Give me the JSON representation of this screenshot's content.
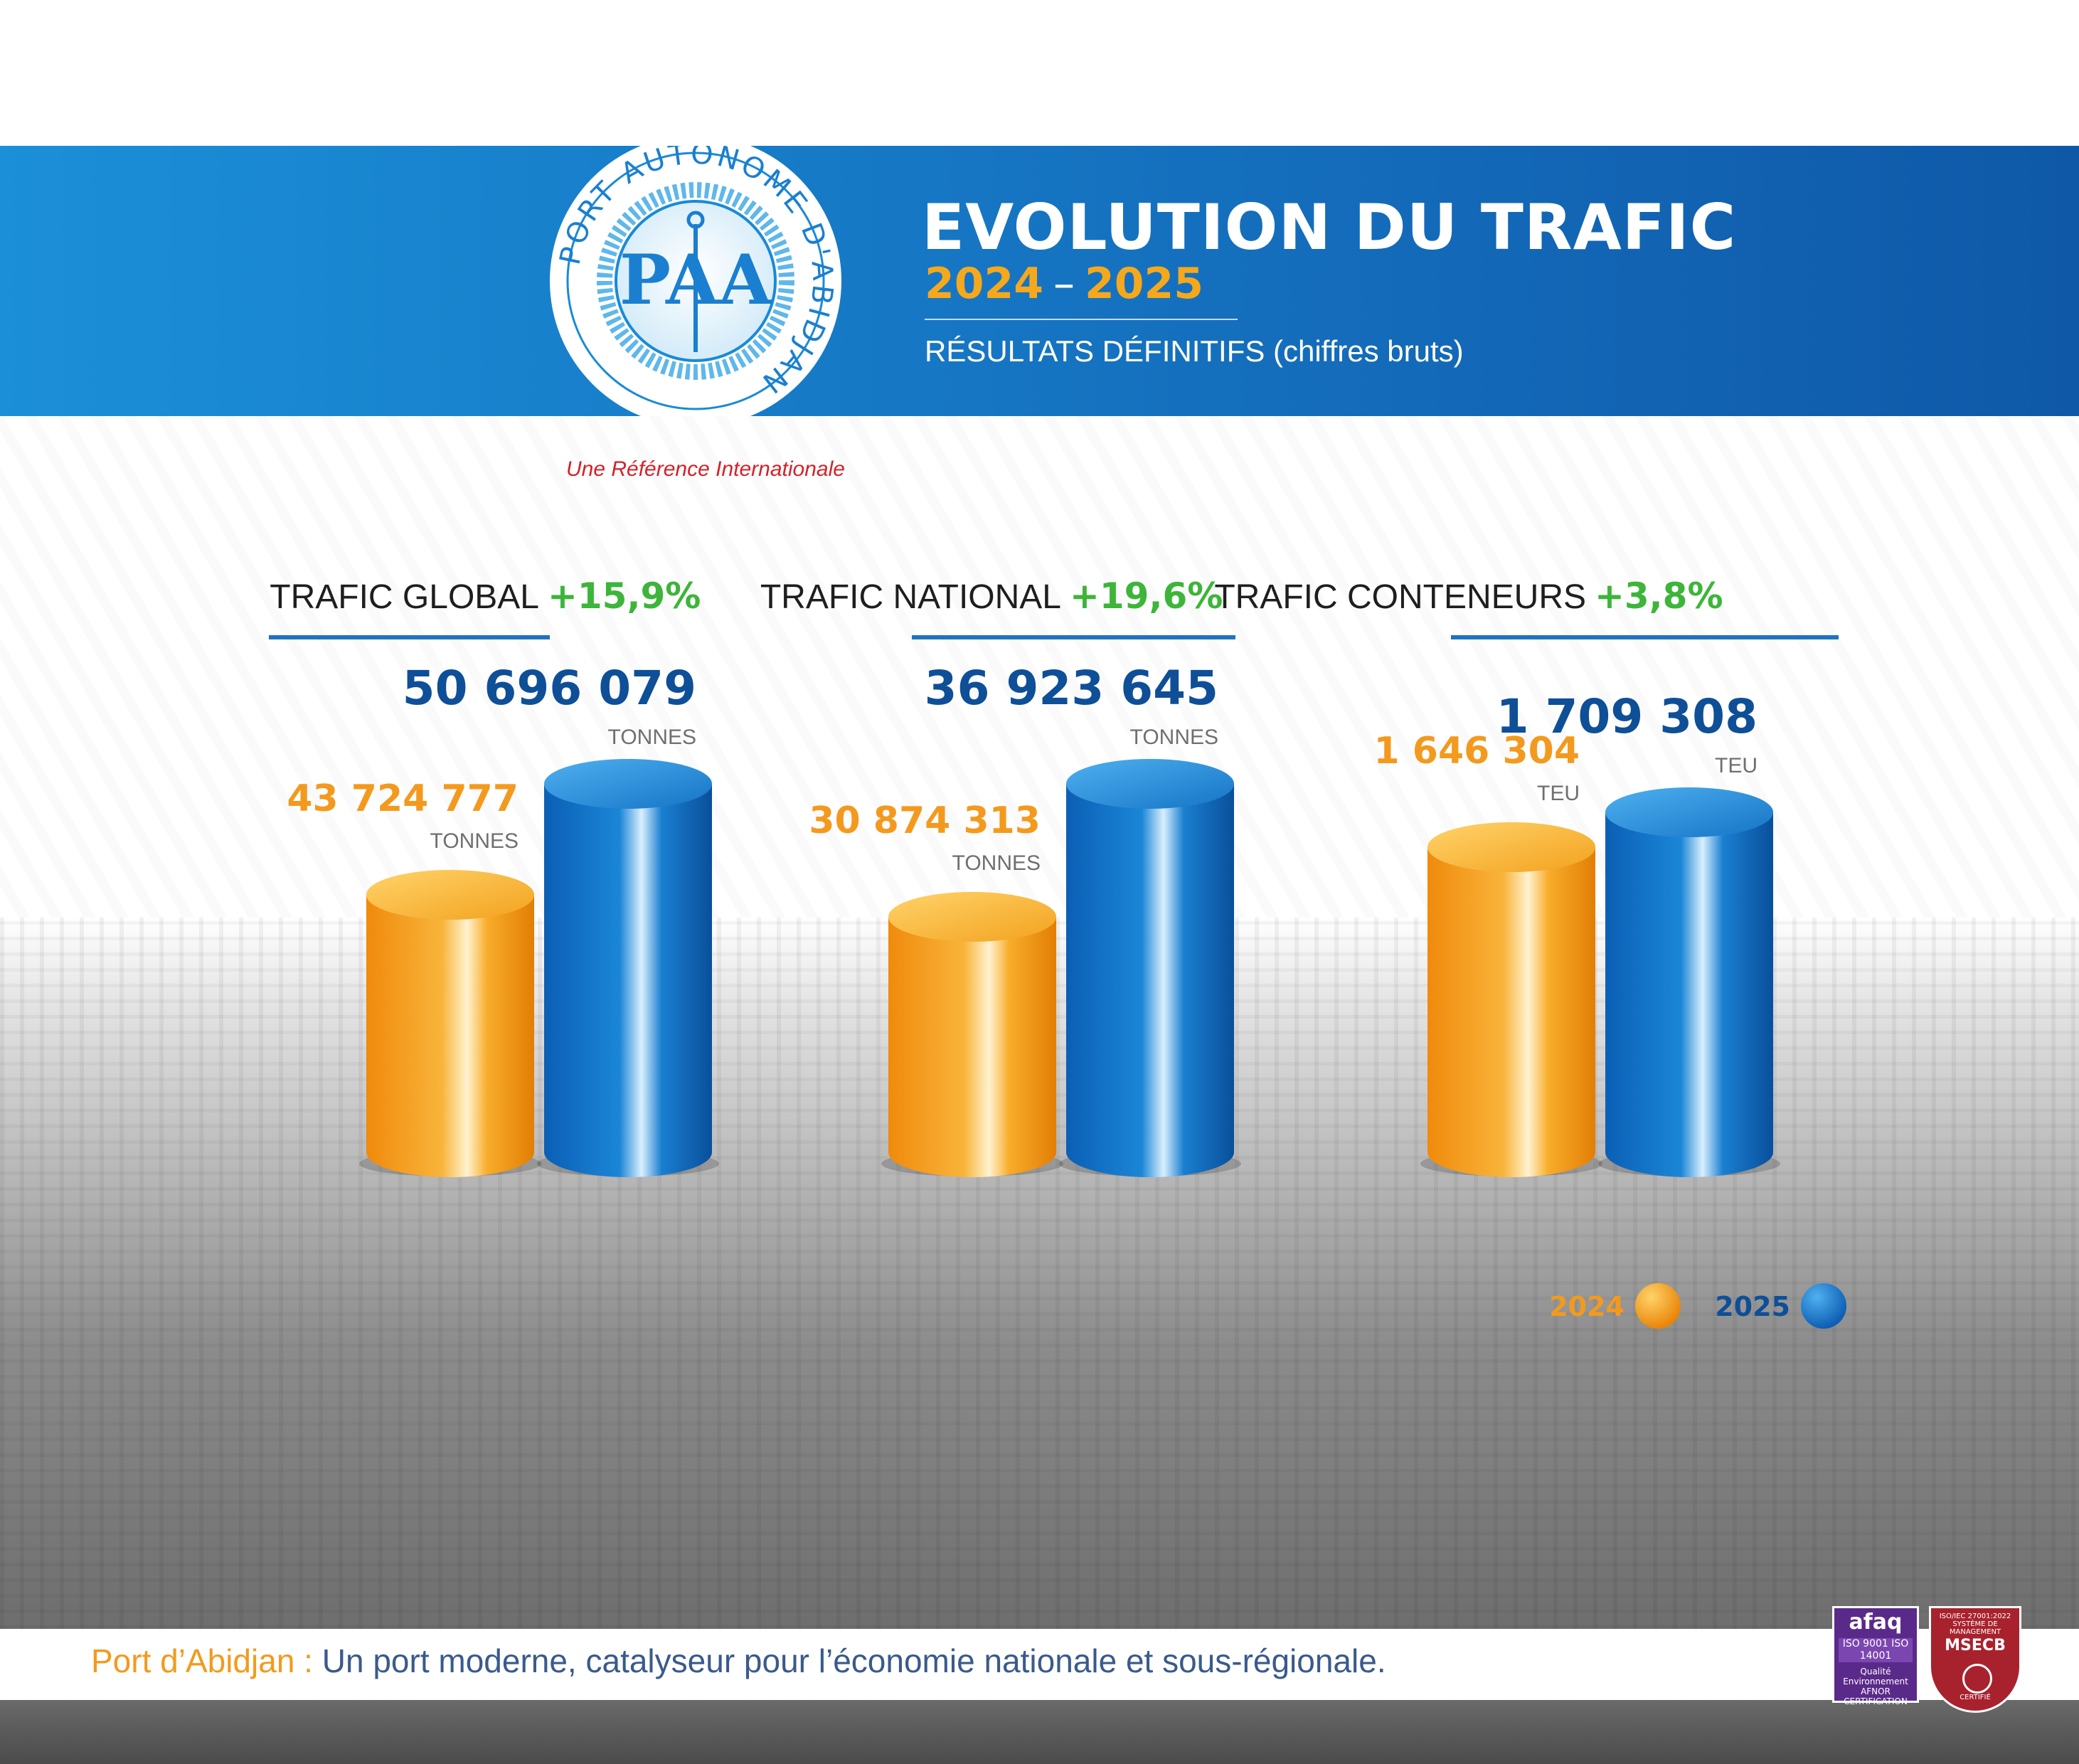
{
  "header": {
    "title": "EVOLUTION DU TRAFIC",
    "year_start": "2024",
    "year_separator": "–",
    "year_end": "2025",
    "subtitle": "RÉSULTATS DÉFINITIFS (chiffres bruts)"
  },
  "logo": {
    "ring_text": "PORT AUTONOME D'ABIDJAN",
    "monogram": "PAA",
    "slogan": "Une Référence Internationale"
  },
  "footer": {
    "highlight": "Port d’Abidjan :",
    "text": " Un port moderne, catalyseur pour l’économie nationale et sous-régionale."
  },
  "certifications": {
    "afaq_brand": "afaq",
    "afaq_iso": "ISO 9001 ISO 14001",
    "afaq_caption": "Qualité Environnement AFNOR CERTIFICATION",
    "msecb_top": "ISO/IEC 27001:2022 SYSTÈME DE MANAGEMENT",
    "msecb_brand": "MSECB",
    "msecb_caption": "CERTIFIÉ"
  },
  "colors": {
    "series_2024": "#f39a1e",
    "series_2025": "#1576c8",
    "value_2025_text": "#0e4f97",
    "growth": "#3db53a",
    "banner": "#1677c4",
    "accent_line": "#1f73c0"
  },
  "chart_data": [
    {
      "type": "bar",
      "title": "TRAFIC GLOBAL",
      "growth": "+15,9%",
      "categories": [
        "2024",
        "2025"
      ],
      "unit": "TONNES",
      "series": [
        {
          "name": "2024",
          "value": 43724777,
          "label": "43 724 777"
        },
        {
          "name": "2025",
          "value": 50696079,
          "label": "50 696 079"
        }
      ]
    },
    {
      "type": "bar",
      "title": "TRAFIC NATIONAL",
      "growth": "+19,6%",
      "categories": [
        "2024",
        "2025"
      ],
      "unit": "TONNES",
      "series": [
        {
          "name": "2024",
          "value": 30874313,
          "label": "30 874 313"
        },
        {
          "name": "2025",
          "value": 36923645,
          "label": "36 923 645"
        }
      ]
    },
    {
      "type": "bar",
      "title": "TRAFIC CONTENEURS",
      "growth": "+3,8%",
      "categories": [
        "2024",
        "2025"
      ],
      "unit": "TEU",
      "series": [
        {
          "name": "2024",
          "value": 1646304,
          "label": "1 646 304"
        },
        {
          "name": "2025",
          "value": 1709308,
          "label": "1 709 308"
        }
      ]
    }
  ],
  "legend": {
    "placement": "bottom-right",
    "items": [
      {
        "label": "2024",
        "color": "#f39a1e"
      },
      {
        "label": "2025",
        "color": "#1576c8"
      }
    ]
  }
}
